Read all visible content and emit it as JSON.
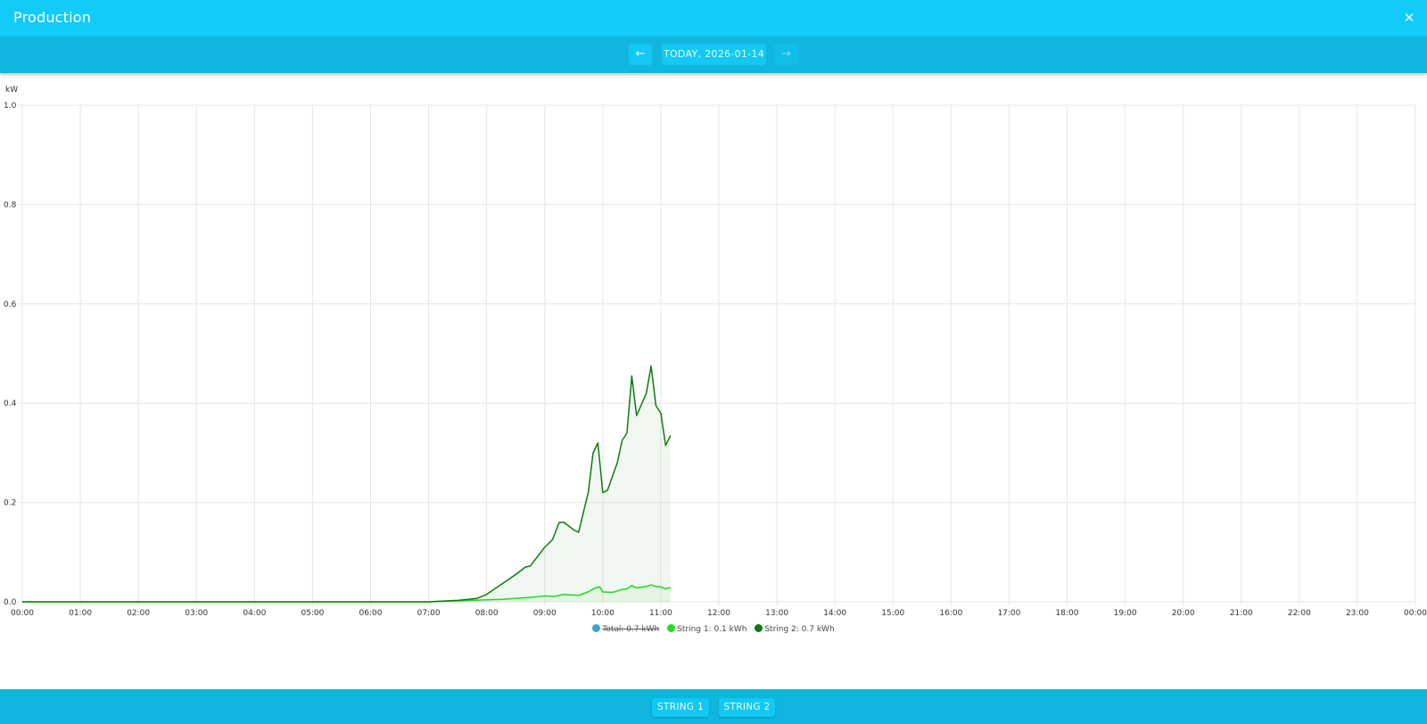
{
  "window": {
    "title": "Production",
    "close_icon": "close-icon"
  },
  "nav": {
    "prev_icon": "arrow-left-icon",
    "date_label": "TODAY, 2026-01-14",
    "next_icon": "arrow-right-icon",
    "prev_glyph": "←",
    "next_glyph": "→"
  },
  "footer": {
    "buttons": [
      {
        "label": "STRING 1"
      },
      {
        "label": "STRING 2"
      }
    ]
  },
  "legend": [
    {
      "label": "Total: 0.7 kWh",
      "color": "#3aa5d1",
      "hidden": true
    },
    {
      "label": "String 1: 0.1 kWh",
      "color": "#22dd22",
      "hidden": false
    },
    {
      "label": "String 2: 0.7 kWh",
      "color": "#127a12",
      "hidden": false
    }
  ],
  "chart_data": {
    "type": "area",
    "title": "Production",
    "xlabel": "",
    "ylabel": "kW",
    "xlim": [
      "00:00",
      "24:00"
    ],
    "ylim": [
      0,
      1.0
    ],
    "grid": true,
    "legend_position": "bottom",
    "x_ticks": [
      "00:00",
      "01:00",
      "02:00",
      "03:00",
      "04:00",
      "05:00",
      "06:00",
      "07:00",
      "08:00",
      "09:00",
      "10:00",
      "11:00",
      "12:00",
      "13:00",
      "14:00",
      "15:00",
      "16:00",
      "17:00",
      "18:00",
      "19:00",
      "20:00",
      "21:00",
      "22:00",
      "23:00",
      "00:00"
    ],
    "y_ticks": [
      "0.0",
      "0.2",
      "0.4",
      "0.6",
      "0.8",
      "1.0"
    ],
    "series": [
      {
        "name": "Total",
        "total_label": "0.7 kWh",
        "color": "#3aa5d1",
        "visible": false,
        "points": []
      },
      {
        "name": "String 1",
        "total_label": "0.1 kWh",
        "color": "#22dd22",
        "visible": true,
        "points": [
          [
            "00:00",
            0
          ],
          [
            "07:00",
            0
          ],
          [
            "07:30",
            0.002
          ],
          [
            "08:00",
            0.004
          ],
          [
            "08:15",
            0.005
          ],
          [
            "08:30",
            0.007
          ],
          [
            "08:45",
            0.009
          ],
          [
            "09:00",
            0.012
          ],
          [
            "09:10",
            0.011
          ],
          [
            "09:20",
            0.015
          ],
          [
            "09:35",
            0.013
          ],
          [
            "09:45",
            0.02
          ],
          [
            "09:52",
            0.028
          ],
          [
            "09:57",
            0.03
          ],
          [
            "10:00",
            0.02
          ],
          [
            "10:10",
            0.019
          ],
          [
            "10:20",
            0.025
          ],
          [
            "10:25",
            0.026
          ],
          [
            "10:30",
            0.033
          ],
          [
            "10:35",
            0.028
          ],
          [
            "10:45",
            0.031
          ],
          [
            "10:50",
            0.034
          ],
          [
            "10:55",
            0.031
          ],
          [
            "11:00",
            0.03
          ],
          [
            "11:05",
            0.026
          ],
          [
            "11:10",
            0.029
          ]
        ]
      },
      {
        "name": "String 2",
        "total_label": "0.7 kWh",
        "color": "#127a12",
        "visible": true,
        "points": [
          [
            "00:00",
            0
          ],
          [
            "07:00",
            0
          ],
          [
            "07:30",
            0.003
          ],
          [
            "07:50",
            0.007
          ],
          [
            "08:00",
            0.015
          ],
          [
            "08:15",
            0.035
          ],
          [
            "08:30",
            0.055
          ],
          [
            "08:40",
            0.07
          ],
          [
            "08:45",
            0.072
          ],
          [
            "09:00",
            0.11
          ],
          [
            "09:08",
            0.125
          ],
          [
            "09:15",
            0.16
          ],
          [
            "09:20",
            0.16
          ],
          [
            "09:30",
            0.145
          ],
          [
            "09:35",
            0.14
          ],
          [
            "09:45",
            0.22
          ],
          [
            "09:50",
            0.3
          ],
          [
            "09:55",
            0.32
          ],
          [
            "10:00",
            0.22
          ],
          [
            "10:05",
            0.225
          ],
          [
            "10:15",
            0.28
          ],
          [
            "10:20",
            0.325
          ],
          [
            "10:25",
            0.34
          ],
          [
            "10:30",
            0.455
          ],
          [
            "10:35",
            0.375
          ],
          [
            "10:45",
            0.42
          ],
          [
            "10:50",
            0.475
          ],
          [
            "10:55",
            0.395
          ],
          [
            "11:00",
            0.38
          ],
          [
            "11:05",
            0.315
          ],
          [
            "11:10",
            0.335
          ]
        ]
      }
    ]
  }
}
